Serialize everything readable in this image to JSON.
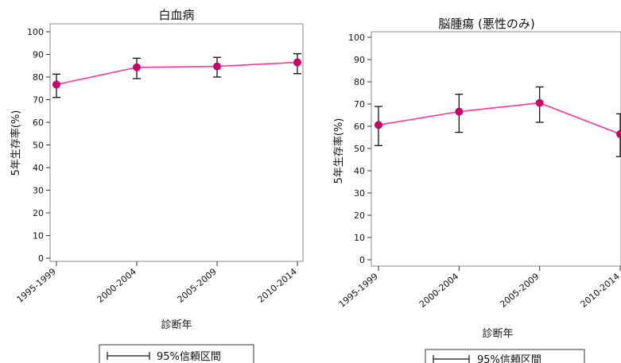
{
  "chart_data": [
    {
      "type": "line",
      "title": "白血病",
      "xlabel": "診断年",
      "ylabel": "5年生存率(%)",
      "categories": [
        "1995-1999",
        "2000-2004",
        "2005-2009",
        "2010-2014"
      ],
      "values": [
        76.7,
        84.3,
        84.7,
        86.5
      ],
      "ci_lower": [
        71.0,
        79.3,
        80.0,
        81.5
      ],
      "ci_upper": [
        81.3,
        88.3,
        88.7,
        90.3
      ],
      "ylim": [
        0,
        100
      ],
      "yticks": [
        0,
        10,
        20,
        30,
        40,
        50,
        60,
        70,
        80,
        90,
        100
      ],
      "grid": false,
      "legend": {
        "text": "95%信頼区間",
        "position": "bottom"
      },
      "line_color": "#ff3399",
      "marker_color": "#cc0066",
      "errorbar_color": "#111111"
    },
    {
      "type": "line",
      "title": "脳腫瘍 (悪性のみ)",
      "xlabel": "診断年",
      "ylabel": "5年生存率(%)",
      "categories": [
        "1995-1999",
        "2000-2004",
        "2005-2009",
        "2010-2014"
      ],
      "values": [
        60.6,
        66.6,
        70.5,
        56.5
      ],
      "ci_lower": [
        51.3,
        57.3,
        61.8,
        46.4
      ],
      "ci_upper": [
        68.9,
        74.4,
        77.7,
        65.6
      ],
      "ylim": [
        0,
        100
      ],
      "yticks": [
        0,
        10,
        20,
        30,
        40,
        50,
        60,
        70,
        80,
        90,
        100
      ],
      "grid": false,
      "legend": {
        "text": "95%信頼区間",
        "position": "bottom"
      },
      "line_color": "#ff3399",
      "marker_color": "#cc0066",
      "errorbar_color": "#111111"
    }
  ]
}
